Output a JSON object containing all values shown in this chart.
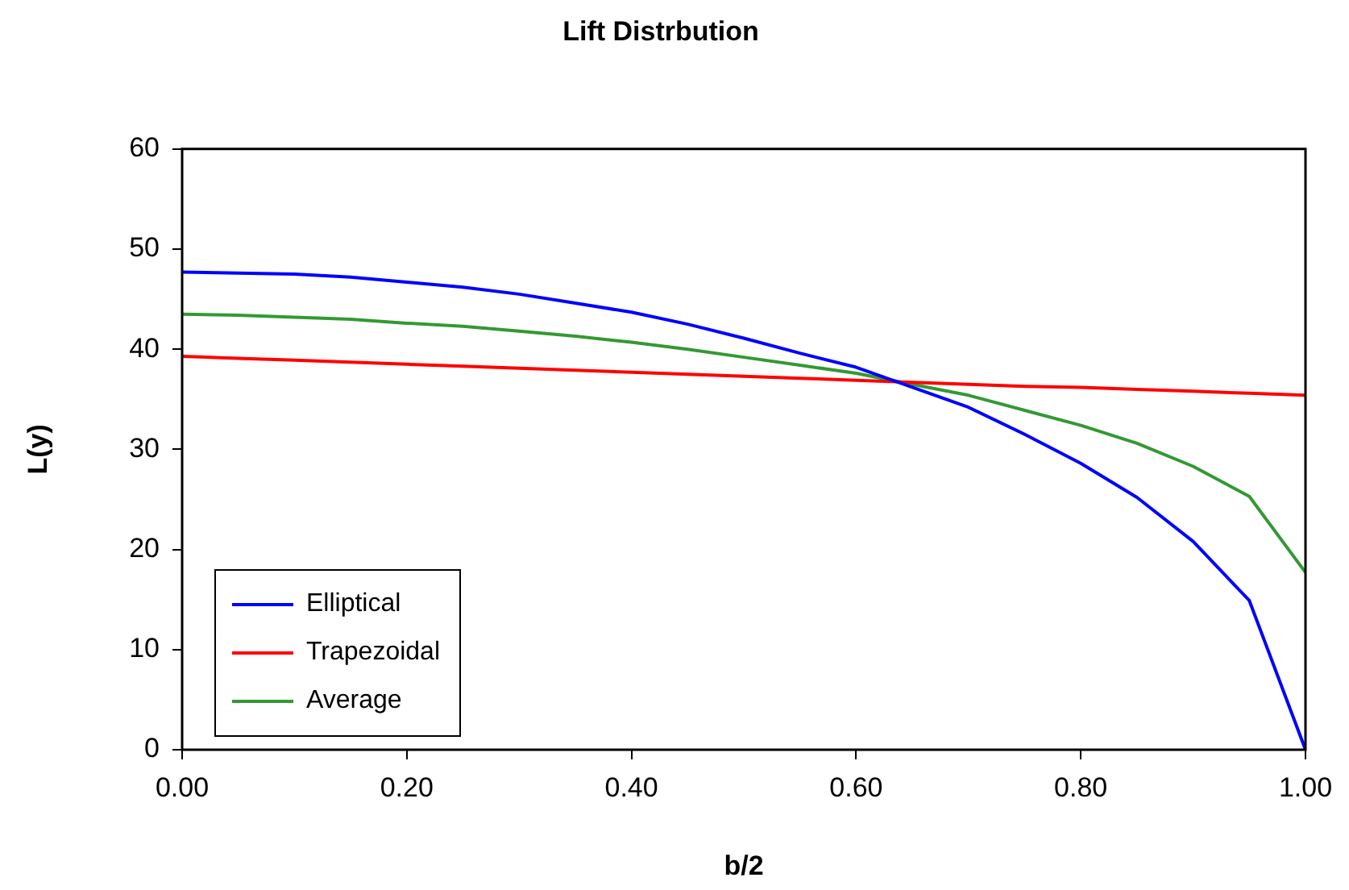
{
  "chart_data": {
    "type": "line",
    "title": "Lift Distrbution",
    "xlabel": "b/2",
    "ylabel": "L(y)",
    "x": [
      0,
      0.05,
      0.1,
      0.15,
      0.2,
      0.25,
      0.3,
      0.35,
      0.4,
      0.45,
      0.5,
      0.55,
      0.6,
      0.65,
      0.7,
      0.75,
      0.8,
      0.85,
      0.9,
      0.95,
      1.0
    ],
    "series": [
      {
        "name": "Elliptical",
        "color": "#0000ff",
        "values": [
          47.7,
          47.6,
          47.5,
          47.2,
          46.7,
          46.2,
          45.5,
          44.6,
          43.7,
          42.5,
          41.1,
          39.6,
          38.2,
          36.2,
          34.2,
          31.5,
          28.6,
          25.2,
          20.8,
          14.9,
          0
        ]
      },
      {
        "name": "Trapezoidal",
        "color": "#ff0000",
        "values": [
          39.3,
          39.1,
          38.9,
          38.7,
          38.5,
          38.3,
          38.1,
          37.9,
          37.7,
          37.5,
          37.3,
          37.1,
          36.9,
          36.7,
          36.5,
          36.3,
          36.2,
          36.0,
          35.8,
          35.6,
          35.4
        ]
      },
      {
        "name": "Average",
        "color": "#339933",
        "values": [
          43.5,
          43.4,
          43.2,
          43.0,
          42.6,
          42.3,
          41.8,
          41.3,
          40.7,
          40.0,
          39.2,
          38.4,
          37.6,
          36.5,
          35.4,
          33.9,
          32.4,
          30.6,
          28.3,
          25.3,
          17.7
        ]
      }
    ],
    "xlim": [
      0,
      1
    ],
    "xticks": [
      {
        "value": 0,
        "label": "0.00"
      },
      {
        "value": 0.2,
        "label": "0.20"
      },
      {
        "value": 0.4,
        "label": "0.40"
      },
      {
        "value": 0.6,
        "label": "0.60"
      },
      {
        "value": 0.8,
        "label": "0.80"
      },
      {
        "value": 1,
        "label": "1.00"
      }
    ],
    "ylim": [
      0,
      60
    ],
    "yticks": [
      0,
      10,
      20,
      30,
      40,
      50,
      60
    ],
    "grid": false,
    "legend": "bottom left",
    "marker": "none",
    "line_style": "solid"
  }
}
